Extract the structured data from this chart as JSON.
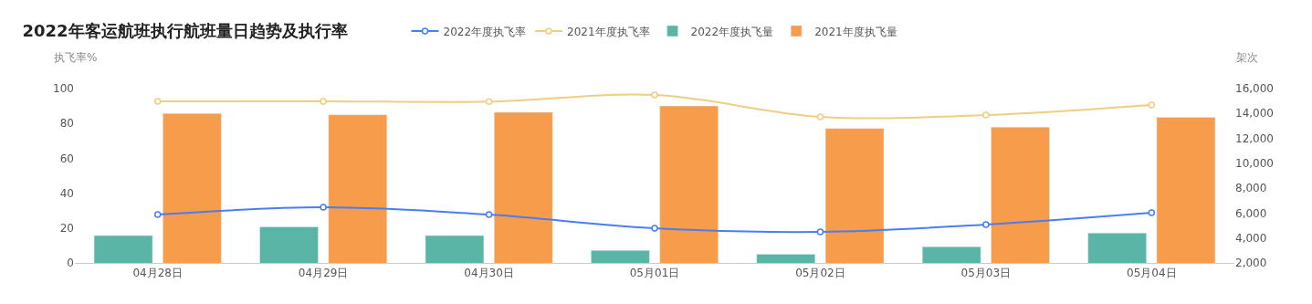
{
  "chart_data": {
    "type": "bar",
    "title": "2022年客运航班执行航班量日趋势及执行率",
    "ylabel": "执飞率%",
    "y2label": "架次",
    "categories": [
      "04月28日",
      "04月29日",
      "04月30日",
      "05月01日",
      "05月02日",
      "05月03日",
      "05月04日"
    ],
    "series": [
      {
        "name": "2022年度执飞率",
        "type": "line",
        "color": "#4a7ef0",
        "values": [
          27.7,
          31.9,
          27.7,
          19.9,
          17.8,
          22,
          28.8
        ]
      },
      {
        "name": "2021年度执飞率",
        "type": "line",
        "color": "#f0cd82",
        "values": [
          92.7,
          92.7,
          92.5,
          96.3,
          83.8,
          84.8,
          90.6
        ]
      },
      {
        "name": "2022年度执飞量",
        "axis": "y2",
        "color": "#5bb5a6",
        "values": [
          4200,
          4900,
          4200,
          3000,
          2700,
          3300,
          4400
        ]
      },
      {
        "name": "2021年度执飞量",
        "axis": "y2",
        "color": "#f79c4b",
        "values": [
          14000,
          13900,
          14100,
          14600,
          12800,
          12900,
          13700
        ]
      }
    ],
    "ylim": [
      0,
      100
    ],
    "yticks": [
      0,
      20,
      40,
      60,
      80,
      100
    ],
    "y2lim": [
      2000,
      16000
    ],
    "y2ticks": [
      {
        "value": 2000,
        "label": "2,000"
      },
      {
        "value": 4000,
        "label": "4,000"
      },
      {
        "value": 6000,
        "label": "6,000"
      },
      {
        "value": 8000,
        "label": "8,000"
      },
      {
        "value": 10000,
        "label": "10,000"
      },
      {
        "value": 12000,
        "label": "12,000"
      },
      {
        "value": 14000,
        "label": "14,000"
      },
      {
        "value": 16000,
        "label": "16,000"
      }
    ],
    "legend": "top",
    "grid": false,
    "marker": "circle"
  }
}
